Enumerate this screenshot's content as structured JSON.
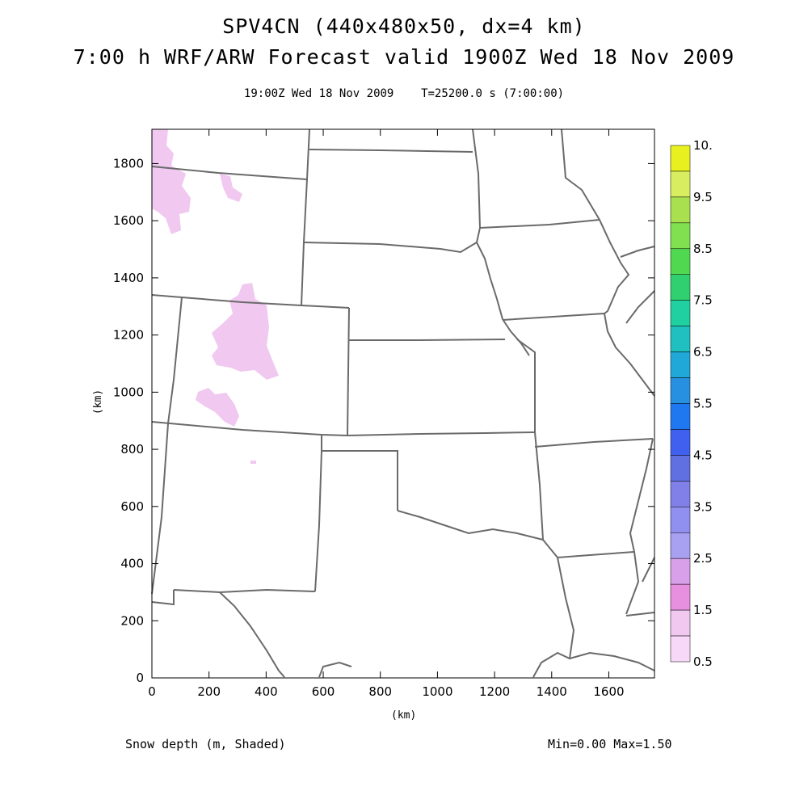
{
  "header": {
    "title_line1": "SPV4CN (440x480x50, dx=4 km)",
    "title_line2": "7:00 h WRF/ARW Forecast valid 1900Z Wed 18 Nov 2009",
    "subtitle": "19:00Z Wed 18 Nov 2009    T=25200.0 s (7:00:00)"
  },
  "footer": {
    "field_label": "Snow depth (m, Shaded)",
    "min_max": "Min=0.00 Max=1.50"
  },
  "axes": {
    "x_label": "(km)",
    "y_label": "(km)",
    "x_ticks": [
      "0",
      "200",
      "400",
      "600",
      "800",
      "1000",
      "1200",
      "1400",
      "1600"
    ],
    "y_ticks": [
      "0",
      "200",
      "400",
      "600",
      "800",
      "1000",
      "1200",
      "1400",
      "1600",
      "1800"
    ],
    "x_range": [
      0,
      1760
    ],
    "y_range": [
      0,
      1920
    ]
  },
  "colorbar": {
    "labels": [
      "10.",
      "9.5",
      "8.5",
      "7.5",
      "6.5",
      "5.5",
      "4.5",
      "3.5",
      "2.5",
      "1.5",
      "0.5"
    ],
    "colors": [
      "#e8f020",
      "#d8ee60",
      "#a8e050",
      "#80e050",
      "#50d850",
      "#30d070",
      "#20d0a0",
      "#20c0c0",
      "#20a8d8",
      "#2890e0",
      "#2078f0",
      "#4060f0",
      "#6070e0",
      "#8080e8",
      "#9090f0",
      "#a8a0f0",
      "#d8a0e8",
      "#e890e0",
      "#f0c8f0",
      "#f8d8f8"
    ]
  },
  "map": {
    "shading_color": "#f0c8f0"
  }
}
